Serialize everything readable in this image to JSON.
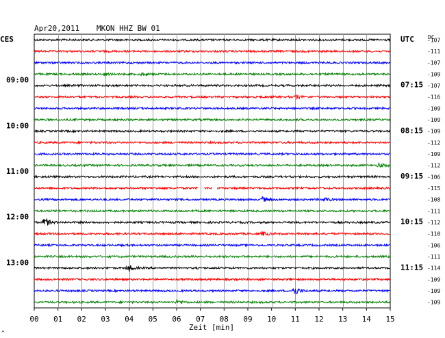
{
  "header": {
    "date": "Apr20,2011",
    "station": "MKON HHZ BW 01",
    "left_zone": "CES",
    "right_zone": "UTC",
    "dc_label": "DC"
  },
  "chart_data": {
    "type": "line",
    "title": "Apr20,2011   MKON HHZ BW 01",
    "xlabel": "Zeit [min]",
    "x_ticks": [
      "00",
      "01",
      "02",
      "03",
      "04",
      "05",
      "06",
      "07",
      "08",
      "09",
      "10",
      "11",
      "12",
      "13",
      "14",
      "15"
    ],
    "xlim": [
      0,
      15
    ],
    "grid": true,
    "trace_colors": [
      "#000000",
      "#ff0000",
      "#0000ff",
      "#007f00"
    ],
    "left_time_labels": [
      {
        "row": 4,
        "text": "09:00"
      },
      {
        "row": 8,
        "text": "10:00"
      },
      {
        "row": 12,
        "text": "11:00"
      },
      {
        "row": 16,
        "text": "12:00"
      },
      {
        "row": 20,
        "text": "13:00"
      }
    ],
    "right_time_labels": [
      {
        "row": 0,
        "text": "UTC"
      },
      {
        "row": 4,
        "text": "07:15"
      },
      {
        "row": 8,
        "text": "08:15"
      },
      {
        "row": 12,
        "text": "09:15"
      },
      {
        "row": 16,
        "text": "10:15"
      },
      {
        "row": 20,
        "text": "11:15"
      }
    ],
    "dc_offsets": [
      "-107",
      "-111",
      "-107",
      "-109",
      "-107",
      "-116",
      "-109",
      "-109",
      "-109",
      "-112",
      "-109",
      "-112",
      "-106",
      "-115",
      "-108",
      "-111",
      "-112",
      "-110",
      "-106",
      "-111",
      "-114",
      "-109",
      "-109",
      "-109"
    ],
    "events": [
      {
        "row": 3,
        "minute": 2.9,
        "amp": 2.5
      },
      {
        "row": 3,
        "minute": 4.5,
        "amp": 2.0
      },
      {
        "row": 5,
        "minute": 11.0,
        "amp": 3.0
      },
      {
        "row": 11,
        "minute": 14.5,
        "amp": 3.5
      },
      {
        "row": 14,
        "minute": 9.6,
        "amp": 3.5
      },
      {
        "row": 14,
        "minute": 12.2,
        "amp": 3.0
      },
      {
        "row": 16,
        "minute": 0.4,
        "amp": 8.0
      },
      {
        "row": 17,
        "minute": 9.6,
        "amp": 3.0
      },
      {
        "row": 20,
        "minute": 3.9,
        "amp": 6.5
      },
      {
        "row": 22,
        "minute": 10.9,
        "amp": 9.0
      },
      {
        "row": 23,
        "minute": 6.0,
        "amp": 3.5
      }
    ],
    "gaps": [
      {
        "row": 13,
        "start": 6.9,
        "end": 7.15
      },
      {
        "row": 13,
        "start": 7.5,
        "end": 7.7
      }
    ]
  },
  "footer_mark": "^"
}
